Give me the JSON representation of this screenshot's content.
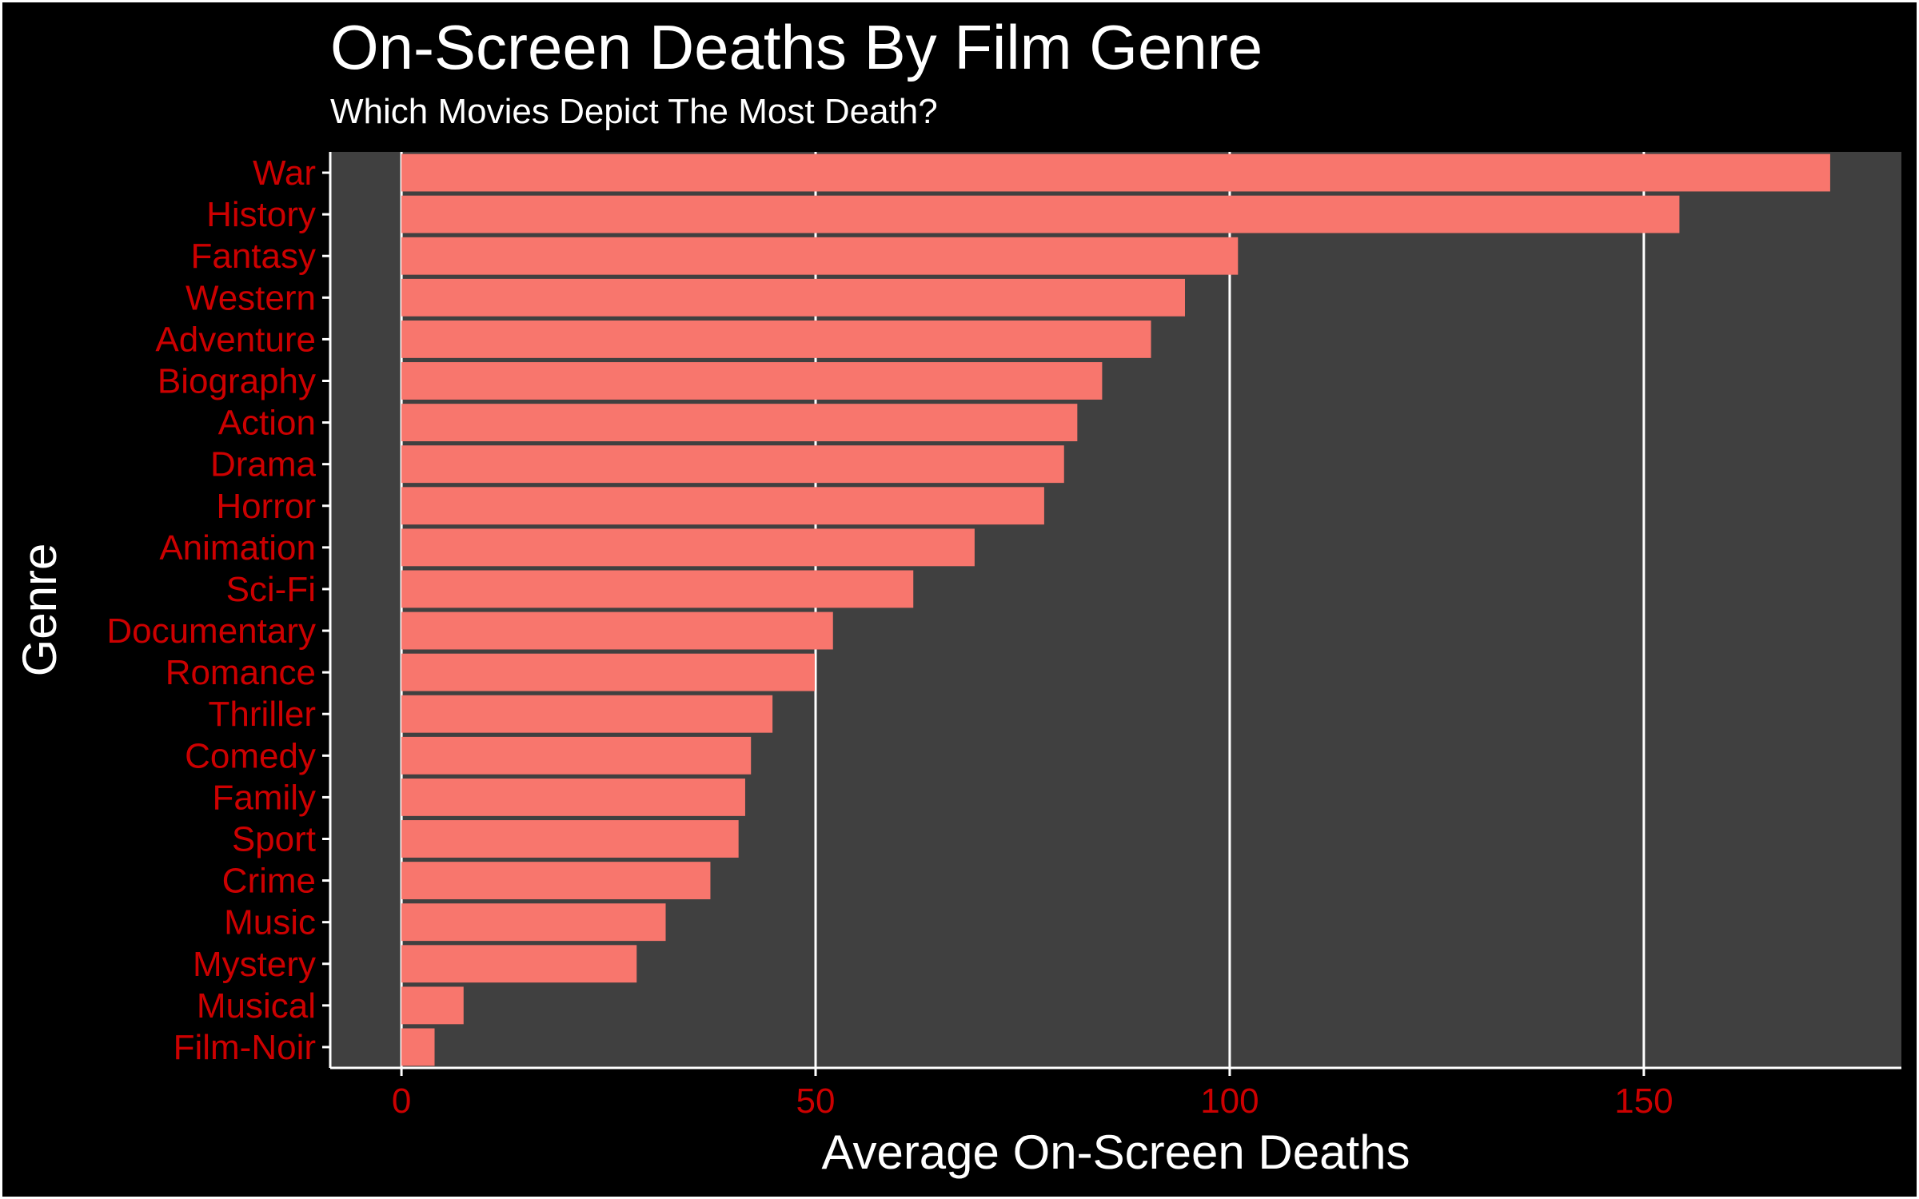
{
  "title": "On-Screen Deaths By Film Genre",
  "subtitle": "Which Movies Depict The Most Death?",
  "chart_data": {
    "type": "bar",
    "orientation": "horizontal",
    "categories": [
      "War",
      "History",
      "Fantasy",
      "Western",
      "Adventure",
      "Biography",
      "Action",
      "Drama",
      "Horror",
      "Animation",
      "Sci-Fi",
      "Documentary",
      "Romance",
      "Thriller",
      "Comedy",
      "Family",
      "Sport",
      "Crime",
      "Music",
      "Mystery",
      "Musical",
      "Film-Noir"
    ],
    "values": [
      172.5,
      154.3,
      101.0,
      94.6,
      90.5,
      84.6,
      81.6,
      80.0,
      77.6,
      69.2,
      61.8,
      52.1,
      49.9,
      44.8,
      42.2,
      41.5,
      40.7,
      37.3,
      31.9,
      28.4,
      7.5,
      4.0
    ],
    "xlabel": "Average On-Screen Deaths",
    "ylabel": "Genre",
    "xticks": [
      0,
      50,
      100,
      150
    ],
    "xlim": [
      -8.6,
      181.1
    ],
    "grid": "vertical major lines",
    "legend": "none",
    "colors": {
      "bar": "#F8766D",
      "panel": "#404040",
      "background": "#000000",
      "grid": "#FFFFFF",
      "tick_labels": "#CC0000",
      "text": "#FFFFFF"
    }
  }
}
